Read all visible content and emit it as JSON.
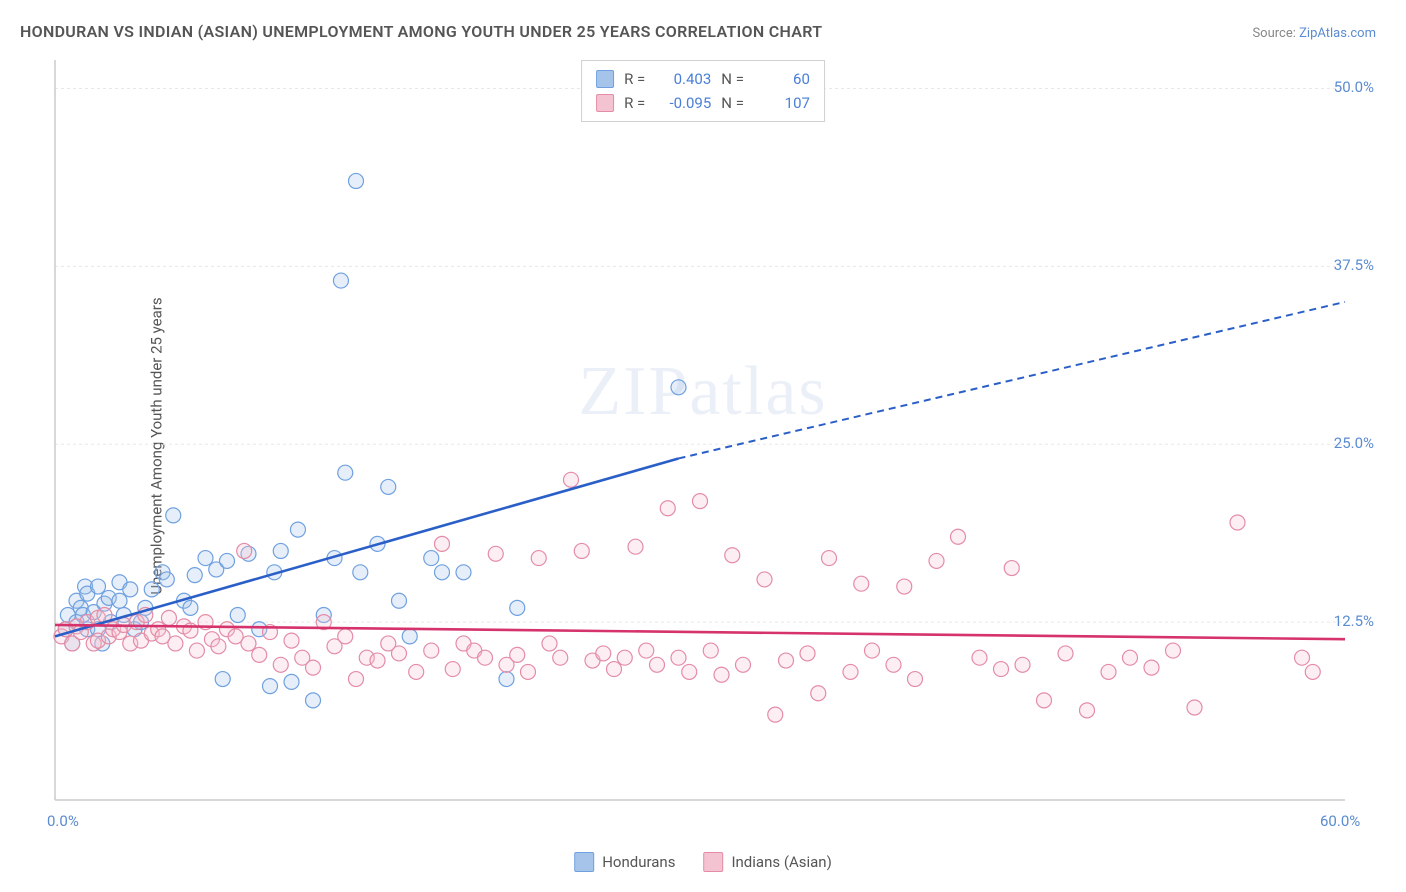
{
  "title": "HONDURAN VS INDIAN (ASIAN) UNEMPLOYMENT AMONG YOUTH UNDER 25 YEARS CORRELATION CHART",
  "source_label": "Source:",
  "source_name": "ZipAtlas.com",
  "ylabel": "Unemployment Among Youth under 25 years",
  "watermark": "ZIPatlas",
  "chart": {
    "type": "scatter",
    "background_color": "#ffffff",
    "grid_color": "#e8e8e8",
    "axis_color": "#cccccc",
    "tick_color": "#5b8bd0",
    "xlim": [
      0,
      60
    ],
    "ylim": [
      0,
      52
    ],
    "xticks": [
      {
        "v": 0,
        "label": "0.0%"
      },
      {
        "v": 60,
        "label": "60.0%"
      }
    ],
    "yticks": [
      {
        "v": 12.5,
        "label": "12.5%"
      },
      {
        "v": 25,
        "label": "25.0%"
      },
      {
        "v": 37.5,
        "label": "37.5%"
      },
      {
        "v": 50,
        "label": "50.0%"
      }
    ],
    "gridlines_y": [
      12.5,
      25,
      37.5,
      50
    ],
    "marker_radius": 7.5,
    "marker_stroke_width": 1.2,
    "marker_fill_opacity": 0.28,
    "trend_line_width": 2.6,
    "trend_dash": "7 5",
    "series": [
      {
        "name": "Hondurans",
        "color": "#6fa0e0",
        "color_solid": "#2a5fc8",
        "fill": "#a6c4ea",
        "R": "0.403",
        "N": "60",
        "trend": {
          "x1": 0,
          "y1": 11.5,
          "x2": 29,
          "y2": 24,
          "x2_ext": 60,
          "y2_ext": 35
        },
        "points": [
          [
            0.5,
            12
          ],
          [
            0.6,
            13
          ],
          [
            0.8,
            11
          ],
          [
            1,
            12.5
          ],
          [
            1,
            14
          ],
          [
            1.2,
            13.5
          ],
          [
            1.3,
            13
          ],
          [
            1.4,
            15
          ],
          [
            1.5,
            14.5
          ],
          [
            1.5,
            12
          ],
          [
            1.8,
            13.2
          ],
          [
            2,
            12
          ],
          [
            2,
            15
          ],
          [
            2.2,
            11
          ],
          [
            2.3,
            13.8
          ],
          [
            2.5,
            14.2
          ],
          [
            2.6,
            12.5
          ],
          [
            3,
            14
          ],
          [
            3,
            15.3
          ],
          [
            3.2,
            13
          ],
          [
            3.5,
            14.8
          ],
          [
            3.7,
            12
          ],
          [
            4,
            12.5
          ],
          [
            4.2,
            13.5
          ],
          [
            4.5,
            14.8
          ],
          [
            5,
            16
          ],
          [
            5.2,
            15.5
          ],
          [
            5.5,
            20
          ],
          [
            6,
            14
          ],
          [
            6.3,
            13.5
          ],
          [
            6.5,
            15.8
          ],
          [
            7,
            17
          ],
          [
            7.5,
            16.2
          ],
          [
            7.8,
            8.5
          ],
          [
            8,
            16.8
          ],
          [
            8.5,
            13
          ],
          [
            9,
            17.3
          ],
          [
            9.5,
            12
          ],
          [
            10,
            8
          ],
          [
            10.2,
            16
          ],
          [
            10.5,
            17.5
          ],
          [
            11,
            8.3
          ],
          [
            11.3,
            19
          ],
          [
            12,
            7
          ],
          [
            12.5,
            13
          ],
          [
            13,
            17
          ],
          [
            13.3,
            36.5
          ],
          [
            13.5,
            23
          ],
          [
            14,
            43.5
          ],
          [
            14.2,
            16
          ],
          [
            15,
            18
          ],
          [
            15.5,
            22
          ],
          [
            16,
            14
          ],
          [
            16.5,
            11.5
          ],
          [
            17.5,
            17
          ],
          [
            18,
            16
          ],
          [
            19,
            16
          ],
          [
            21,
            8.5
          ],
          [
            21.5,
            13.5
          ],
          [
            29,
            29
          ]
        ]
      },
      {
        "name": "Indians (Asian)",
        "color": "#e48ca6",
        "color_solid": "#d6336c",
        "fill": "#f3c3d1",
        "R": "-0.095",
        "N": "107",
        "trend": {
          "x1": 0,
          "y1": 12.3,
          "x2": 60,
          "y2": 11.3,
          "x2_ext": 60,
          "y2_ext": 11.3
        },
        "points": [
          [
            0.3,
            11.5
          ],
          [
            0.5,
            12
          ],
          [
            0.8,
            11
          ],
          [
            1,
            12.2
          ],
          [
            1.2,
            11.8
          ],
          [
            1.5,
            12.5
          ],
          [
            1.8,
            11
          ],
          [
            2,
            12.8
          ],
          [
            2,
            11.2
          ],
          [
            2.3,
            13
          ],
          [
            2.5,
            11.5
          ],
          [
            2.7,
            12
          ],
          [
            3,
            11.8
          ],
          [
            3.2,
            12.3
          ],
          [
            3.5,
            11
          ],
          [
            3.8,
            12.5
          ],
          [
            4,
            11.2
          ],
          [
            4.2,
            13
          ],
          [
            4.5,
            11.7
          ],
          [
            4.8,
            12
          ],
          [
            5,
            11.5
          ],
          [
            5.3,
            12.8
          ],
          [
            5.6,
            11
          ],
          [
            6,
            12.2
          ],
          [
            6.3,
            11.9
          ],
          [
            6.6,
            10.5
          ],
          [
            7,
            12.5
          ],
          [
            7.3,
            11.3
          ],
          [
            7.6,
            10.8
          ],
          [
            8,
            12
          ],
          [
            8.4,
            11.5
          ],
          [
            8.8,
            17.5
          ],
          [
            9,
            11
          ],
          [
            9.5,
            10.2
          ],
          [
            10,
            11.8
          ],
          [
            10.5,
            9.5
          ],
          [
            11,
            11.2
          ],
          [
            11.5,
            10
          ],
          [
            12,
            9.3
          ],
          [
            12.5,
            12.5
          ],
          [
            13,
            10.8
          ],
          [
            13.5,
            11.5
          ],
          [
            14,
            8.5
          ],
          [
            14.5,
            10
          ],
          [
            15,
            9.8
          ],
          [
            15.5,
            11
          ],
          [
            16,
            10.3
          ],
          [
            16.8,
            9
          ],
          [
            17.5,
            10.5
          ],
          [
            18,
            18
          ],
          [
            18.5,
            9.2
          ],
          [
            19,
            11
          ],
          [
            19.5,
            10.5
          ],
          [
            20,
            10
          ],
          [
            20.5,
            17.3
          ],
          [
            21,
            9.5
          ],
          [
            21.5,
            10.2
          ],
          [
            22,
            9
          ],
          [
            22.5,
            17
          ],
          [
            23,
            11
          ],
          [
            23.5,
            10
          ],
          [
            24,
            22.5
          ],
          [
            24.5,
            17.5
          ],
          [
            25,
            9.8
          ],
          [
            25.5,
            10.3
          ],
          [
            26,
            9.2
          ],
          [
            26.5,
            10
          ],
          [
            27,
            17.8
          ],
          [
            27.5,
            10.5
          ],
          [
            28,
            9.5
          ],
          [
            28.5,
            20.5
          ],
          [
            29,
            10
          ],
          [
            29.5,
            9
          ],
          [
            30,
            21
          ],
          [
            30.5,
            10.5
          ],
          [
            31,
            8.8
          ],
          [
            31.5,
            17.2
          ],
          [
            32,
            9.5
          ],
          [
            33,
            15.5
          ],
          [
            33.5,
            6
          ],
          [
            34,
            9.8
          ],
          [
            35,
            10.3
          ],
          [
            35.5,
            7.5
          ],
          [
            36,
            17
          ],
          [
            37,
            9
          ],
          [
            37.5,
            15.2
          ],
          [
            38,
            10.5
          ],
          [
            39,
            9.5
          ],
          [
            39.5,
            15
          ],
          [
            40,
            8.5
          ],
          [
            41,
            16.8
          ],
          [
            42,
            18.5
          ],
          [
            43,
            10
          ],
          [
            44,
            9.2
          ],
          [
            44.5,
            16.3
          ],
          [
            45,
            9.5
          ],
          [
            46,
            7
          ],
          [
            47,
            10.3
          ],
          [
            48,
            6.3
          ],
          [
            49,
            9
          ],
          [
            50,
            10
          ],
          [
            51,
            9.3
          ],
          [
            52,
            10.5
          ],
          [
            53,
            6.5
          ],
          [
            55,
            19.5
          ],
          [
            58,
            10
          ],
          [
            58.5,
            9
          ]
        ]
      }
    ],
    "legend": [
      {
        "label": "Hondurans",
        "fill": "#a6c4ea",
        "stroke": "#6fa0e0"
      },
      {
        "label": "Indians (Asian)",
        "fill": "#f3c3d1",
        "stroke": "#e48ca6"
      }
    ],
    "stats_box": {
      "rows": [
        {
          "swatch_fill": "#a6c4ea",
          "swatch_stroke": "#6fa0e0",
          "R_label": "R =",
          "R": "0.403",
          "N_label": "N =",
          "N": "60"
        },
        {
          "swatch_fill": "#f3c3d1",
          "swatch_stroke": "#e48ca6",
          "R_label": "R =",
          "R": "-0.095",
          "N_label": "N =",
          "N": "107"
        }
      ]
    }
  }
}
